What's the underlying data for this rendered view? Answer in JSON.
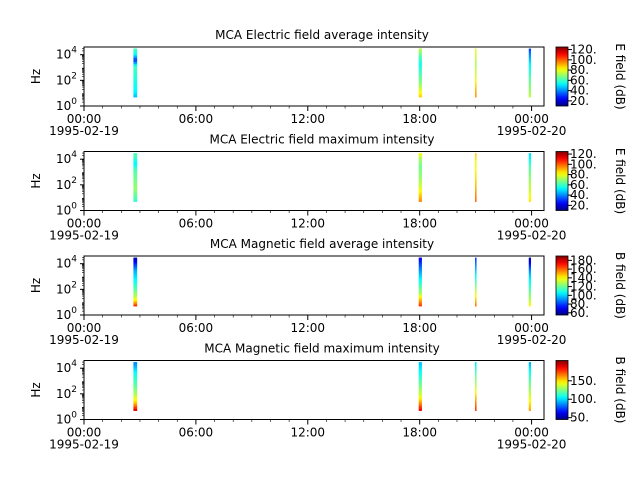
{
  "figure": {
    "time_start": "1995-02-19T00:00",
    "time_end": "1995-02-20T00:40"
  },
  "chart_data": [
    {
      "type": "heatmap",
      "title": "MCA  Electric field average intensity",
      "ylabel": "Hz",
      "yscale": "log",
      "y_ticks": [
        {
          "exp": 0,
          "label": "10",
          "sup": "0"
        },
        {
          "exp": 2,
          "label": "10",
          "sup": "2"
        },
        {
          "exp": 4,
          "label": "10",
          "sup": "4"
        }
      ],
      "x_ticks": [
        {
          "t": 0,
          "label": "00:00"
        },
        {
          "t": 6,
          "label": "06:00"
        },
        {
          "t": 12,
          "label": "12:00"
        },
        {
          "t": 18,
          "label": "18:00"
        },
        {
          "t": 24,
          "label": "00:00"
        }
      ],
      "x_date_labels": [
        {
          "t": 0,
          "label": "1995-02-19"
        },
        {
          "t": 24,
          "label": "1995-02-20"
        }
      ],
      "colorbar": {
        "label": "E field (dB)",
        "range": [
          10,
          125
        ],
        "ticks": [
          20,
          40,
          60,
          80,
          100,
          120
        ],
        "tick_labels": [
          "20.",
          "40.",
          "60.",
          "80.",
          "100.",
          "120."
        ]
      },
      "bands": [
        {
          "t_start": 2.65,
          "t_end": 2.85,
          "f_low": 5,
          "f_high": 30000,
          "profile": [
            [
              5,
              45
            ],
            [
              12,
              52
            ],
            [
              60,
              55
            ],
            [
              250,
              58
            ],
            [
              1200,
              60
            ],
            [
              4000,
              30
            ],
            [
              12000,
              55
            ],
            [
              30000,
              60
            ]
          ]
        },
        {
          "t_start": 17.95,
          "t_end": 18.12,
          "f_low": 5,
          "f_high": 30000,
          "profile": [
            [
              5,
              88
            ],
            [
              15,
              80
            ],
            [
              50,
              70
            ],
            [
              300,
              62
            ],
            [
              2000,
              55
            ],
            [
              8000,
              62
            ],
            [
              30000,
              75
            ]
          ]
        },
        {
          "t_start": 20.97,
          "t_end": 21.03,
          "f_low": 5,
          "f_high": 30000,
          "profile": [
            [
              5,
              95
            ],
            [
              30,
              88
            ],
            [
              200,
              78
            ],
            [
              2000,
              72
            ],
            [
              30000,
              80
            ]
          ]
        },
        {
          "t_start": 23.85,
          "t_end": 23.97,
          "f_low": 5,
          "f_high": 30000,
          "profile": [
            [
              5,
              75
            ],
            [
              20,
              70
            ],
            [
              200,
              62
            ],
            [
              2000,
              52
            ],
            [
              8000,
              42
            ],
            [
              20000,
              35
            ],
            [
              30000,
              30
            ]
          ]
        }
      ]
    },
    {
      "type": "heatmap",
      "title": "MCA  Electric field maximum intensity",
      "ylabel": "Hz",
      "yscale": "log",
      "y_ticks": [
        {
          "exp": 0,
          "label": "10",
          "sup": "0"
        },
        {
          "exp": 2,
          "label": "10",
          "sup": "2"
        },
        {
          "exp": 4,
          "label": "10",
          "sup": "4"
        }
      ],
      "x_ticks": [
        {
          "t": 0,
          "label": "00:00"
        },
        {
          "t": 6,
          "label": "06:00"
        },
        {
          "t": 12,
          "label": "12:00"
        },
        {
          "t": 18,
          "label": "18:00"
        },
        {
          "t": 24,
          "label": "00:00"
        }
      ],
      "x_date_labels": [
        {
          "t": 0,
          "label": "1995-02-19"
        },
        {
          "t": 24,
          "label": "1995-02-20"
        }
      ],
      "colorbar": {
        "label": "E field (dB)",
        "range": [
          10,
          125
        ],
        "ticks": [
          20,
          40,
          60,
          80,
          100,
          120
        ],
        "tick_labels": [
          "20.",
          "40.",
          "60.",
          "80.",
          "100.",
          "120."
        ]
      },
      "bands": [
        {
          "t_start": 2.65,
          "t_end": 2.85,
          "f_low": 5,
          "f_high": 30000,
          "profile": [
            [
              5,
              58
            ],
            [
              15,
              64
            ],
            [
              60,
              70
            ],
            [
              300,
              66
            ],
            [
              1500,
              62
            ],
            [
              5000,
              52
            ],
            [
              15000,
              60
            ],
            [
              30000,
              62
            ]
          ]
        },
        {
          "t_start": 17.95,
          "t_end": 18.12,
          "f_low": 5,
          "f_high": 30000,
          "profile": [
            [
              5,
              96
            ],
            [
              15,
              88
            ],
            [
              60,
              78
            ],
            [
              400,
              70
            ],
            [
              3000,
              66
            ],
            [
              12000,
              72
            ],
            [
              30000,
              82
            ]
          ]
        },
        {
          "t_start": 20.97,
          "t_end": 21.03,
          "f_low": 5,
          "f_high": 30000,
          "profile": [
            [
              5,
              100
            ],
            [
              40,
              92
            ],
            [
              400,
              85
            ],
            [
              4000,
              80
            ],
            [
              30000,
              88
            ]
          ]
        },
        {
          "t_start": 23.85,
          "t_end": 23.97,
          "f_low": 5,
          "f_high": 30000,
          "profile": [
            [
              5,
              85
            ],
            [
              25,
              78
            ],
            [
              300,
              70
            ],
            [
              3000,
              62
            ],
            [
              12000,
              52
            ],
            [
              30000,
              50
            ]
          ]
        }
      ]
    },
    {
      "type": "heatmap",
      "title": "MCA  Magnetic field average intensity",
      "ylabel": "Hz",
      "yscale": "log",
      "y_ticks": [
        {
          "exp": 0,
          "label": "10",
          "sup": "0"
        },
        {
          "exp": 2,
          "label": "10",
          "sup": "2"
        },
        {
          "exp": 4,
          "label": "10",
          "sup": "4"
        }
      ],
      "x_ticks": [
        {
          "t": 0,
          "label": "00:00"
        },
        {
          "t": 6,
          "label": "06:00"
        },
        {
          "t": 12,
          "label": "12:00"
        },
        {
          "t": 18,
          "label": "18:00"
        },
        {
          "t": 24,
          "label": "00:00"
        }
      ],
      "x_date_labels": [
        {
          "t": 0,
          "label": "1995-02-19"
        },
        {
          "t": 24,
          "label": "1995-02-20"
        }
      ],
      "colorbar": {
        "label": "B field (dB)",
        "range": [
          55,
          190
        ],
        "ticks": [
          60,
          80,
          100,
          120,
          140,
          160,
          180
        ],
        "tick_labels": [
          "60.",
          "80.",
          "100.",
          "120.",
          "140.",
          "160.",
          "180."
        ]
      },
      "bands": [
        {
          "t_start": 2.65,
          "t_end": 2.85,
          "f_low": 5,
          "f_high": 30000,
          "profile": [
            [
              5,
              172
            ],
            [
              10,
              150
            ],
            [
              25,
              132
            ],
            [
              80,
              120
            ],
            [
              400,
              108
            ],
            [
              3000,
              95
            ],
            [
              30000,
              62
            ]
          ]
        },
        {
          "t_start": 17.95,
          "t_end": 18.12,
          "f_low": 5,
          "f_high": 30000,
          "profile": [
            [
              5,
              168
            ],
            [
              15,
              150
            ],
            [
              50,
              128
            ],
            [
              300,
              112
            ],
            [
              3000,
              92
            ],
            [
              30000,
              70
            ]
          ]
        },
        {
          "t_start": 20.97,
          "t_end": 21.03,
          "f_low": 5,
          "f_high": 30000,
          "profile": [
            [
              5,
              160
            ],
            [
              30,
              140
            ],
            [
              300,
              118
            ],
            [
              3000,
              98
            ],
            [
              30000,
              78
            ]
          ]
        },
        {
          "t_start": 23.85,
          "t_end": 23.97,
          "f_low": 5,
          "f_high": 30000,
          "profile": [
            [
              5,
              140
            ],
            [
              20,
              128
            ],
            [
              200,
              112
            ],
            [
              2000,
              95
            ],
            [
              30000,
              60
            ]
          ]
        }
      ]
    },
    {
      "type": "heatmap",
      "title": "MCA  Magnetic field maximum intensity",
      "ylabel": "Hz",
      "yscale": "log",
      "y_ticks": [
        {
          "exp": 0,
          "label": "10",
          "sup": "0"
        },
        {
          "exp": 2,
          "label": "10",
          "sup": "2"
        },
        {
          "exp": 4,
          "label": "10",
          "sup": "4"
        }
      ],
      "x_ticks": [
        {
          "t": 0,
          "label": "00:00"
        },
        {
          "t": 6,
          "label": "06:00"
        },
        {
          "t": 12,
          "label": "12:00"
        },
        {
          "t": 18,
          "label": "18:00"
        },
        {
          "t": 24,
          "label": "00:00"
        }
      ],
      "x_date_labels": [
        {
          "t": 0,
          "label": "1995-02-19"
        },
        {
          "t": 24,
          "label": "1995-02-20"
        }
      ],
      "colorbar": {
        "label": "B field (dB)",
        "range": [
          45,
          205
        ],
        "ticks": [
          50,
          100,
          150
        ],
        "tick_labels": [
          "50.",
          "100.",
          "150."
        ]
      },
      "bands": [
        {
          "t_start": 2.65,
          "t_end": 2.85,
          "f_low": 5,
          "f_high": 30000,
          "profile": [
            [
              5,
              195
            ],
            [
              10,
              172
            ],
            [
              25,
              150
            ],
            [
              100,
              132
            ],
            [
              600,
              118
            ],
            [
              4000,
              108
            ],
            [
              30000,
              85
            ]
          ]
        },
        {
          "t_start": 17.95,
          "t_end": 18.12,
          "f_low": 5,
          "f_high": 30000,
          "profile": [
            [
              5,
              190
            ],
            [
              15,
              168
            ],
            [
              60,
              142
            ],
            [
              400,
              125
            ],
            [
              3000,
              110
            ],
            [
              30000,
              95
            ]
          ]
        },
        {
          "t_start": 20.97,
          "t_end": 21.03,
          "f_low": 5,
          "f_high": 30000,
          "profile": [
            [
              5,
              180
            ],
            [
              40,
              158
            ],
            [
              400,
              135
            ],
            [
              4000,
              118
            ],
            [
              30000,
              100
            ]
          ]
        },
        {
          "t_start": 23.85,
          "t_end": 23.97,
          "f_low": 5,
          "f_high": 30000,
          "profile": [
            [
              5,
              160
            ],
            [
              30,
              145
            ],
            [
              300,
              128
            ],
            [
              3000,
              112
            ],
            [
              30000,
              92
            ]
          ]
        }
      ]
    }
  ]
}
